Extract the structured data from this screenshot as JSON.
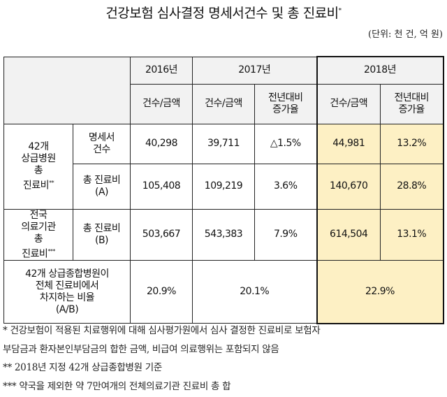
{
  "title": "건강보험 심사결정 명세서건수 및 총 진료비",
  "title_mark": "*",
  "unit": "(단위: 천 건, 억 원)",
  "colors": {
    "header_bg": "#f2f2f2",
    "highlight_bg": "#fdf0c4"
  },
  "header": {
    "years": [
      "2016년",
      "2017년",
      "2018년"
    ],
    "sub": [
      "건수/금액",
      "건수/금액",
      "전년대비\n증가율",
      "건수/금액",
      "전년대비\n증가율"
    ]
  },
  "groups": [
    {
      "label": "42개\n상급병원\n총\n진료비",
      "mark": "**",
      "rows": [
        {
          "item": "명세서\n건수",
          "v2016": "40,298",
          "v2017": "39,711",
          "g2017": "△1.5%",
          "v2018": "44,981",
          "g2018": "13.2%"
        },
        {
          "item": "총 진료비\n(A)",
          "v2016": "105,408",
          "v2017": "109,219",
          "g2017": "3.6%",
          "v2018": "140,670",
          "g2018": "28.8%"
        }
      ]
    },
    {
      "label": "전국\n의료기관\n총\n진료비",
      "mark": "***",
      "rows": [
        {
          "item": "총 진료비\n(B)",
          "v2016": "503,667",
          "v2017": "543,383",
          "g2017": "7.9%",
          "v2018": "614,504",
          "g2018": "13.1%"
        }
      ]
    }
  ],
  "ratio": {
    "label": "42개 상급종합병원이\n전체 진료비에서\n차지하는 비율\n(A/B)",
    "v2016": "20.9%",
    "v2017": "20.1%",
    "v2018": "22.9%"
  },
  "notes": [
    " * 건강보험이 적용된 치료행위에 대해 심사평가원에서 심사 결정한 진료비로 보험자",
    "부담금과 환자본인부담금의 합한 금액, 비급여 의료행위는 포함되지 않음",
    " ** 2018년 지정 42개 상급종합병원 기준",
    " *** 약국을 제외한 약 7만여개의 전체의료기관 진료비 총 합"
  ]
}
